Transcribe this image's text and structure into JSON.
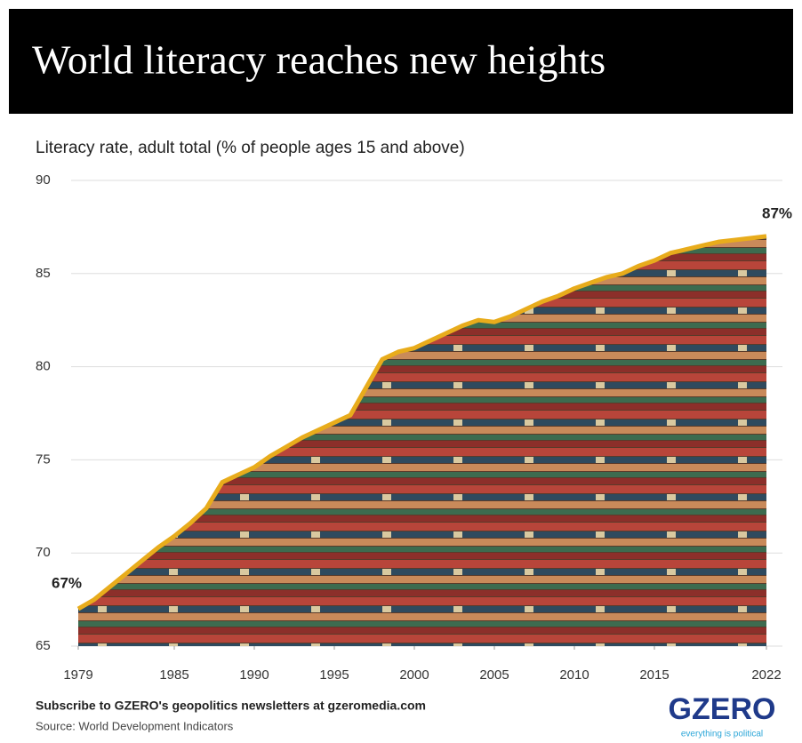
{
  "chart_data": {
    "type": "line",
    "title": "World literacy reaches new heights",
    "subtitle": "Literacy rate, adult total (% of people ages 15 and above)",
    "x": [
      1979,
      1980,
      1981,
      1982,
      1983,
      1984,
      1985,
      1986,
      1987,
      1988,
      1989,
      1990,
      1991,
      1992,
      1993,
      1994,
      1995,
      1996,
      1997,
      1998,
      1999,
      2000,
      2001,
      2002,
      2003,
      2004,
      2005,
      2006,
      2007,
      2008,
      2009,
      2010,
      2011,
      2012,
      2013,
      2014,
      2015,
      2016,
      2017,
      2018,
      2019,
      2020,
      2021,
      2022
    ],
    "values": [
      67.0,
      67.5,
      68.2,
      68.9,
      69.6,
      70.3,
      70.9,
      71.6,
      72.4,
      73.8,
      74.2,
      74.6,
      75.2,
      75.7,
      76.2,
      76.6,
      77.0,
      77.4,
      78.9,
      80.4,
      80.8,
      81.0,
      81.4,
      81.8,
      82.2,
      82.5,
      82.4,
      82.7,
      83.1,
      83.5,
      83.8,
      84.2,
      84.5,
      84.8,
      85.0,
      85.4,
      85.7,
      86.1,
      86.3,
      86.5,
      86.7,
      86.8,
      86.9,
      87.0
    ],
    "value_labels": [
      "67%",
      null,
      null,
      null,
      null,
      null,
      null,
      null,
      null,
      null,
      null,
      null,
      null,
      null,
      null,
      null,
      null,
      null,
      null,
      null,
      null,
      null,
      null,
      null,
      null,
      null,
      null,
      null,
      null,
      null,
      null,
      null,
      null,
      null,
      null,
      null,
      null,
      null,
      null,
      null,
      null,
      null,
      null,
      "87%"
    ],
    "color": "#e8ac1c",
    "xlim": [
      1979,
      2022
    ],
    "xticks": [
      1979,
      1985,
      1990,
      1995,
      2000,
      2005,
      2010,
      2015,
      2022
    ],
    "ylim": [
      65,
      90
    ],
    "yticks": [
      65,
      70,
      75,
      80,
      85,
      90
    ],
    "grid": true
  },
  "footer": {
    "subscribe": "Subscribe to GZERO's geopolitics newsletters at gzeromedia.com",
    "source": "Source: World Development Indicators"
  },
  "logo": {
    "name": "GZERO",
    "tagline": "everything is political"
  }
}
